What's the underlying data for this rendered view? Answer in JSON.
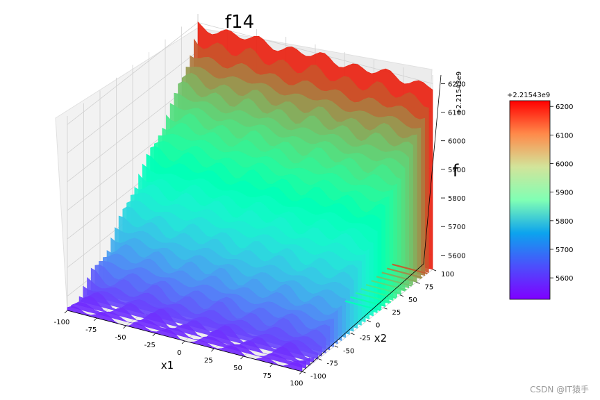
{
  "chart_data": {
    "type": "surface",
    "title": "f14",
    "xlabel": "x1",
    "ylabel": "x2",
    "zlabel": "f",
    "xlim": [
      -100,
      100
    ],
    "ylim": [
      -100,
      100
    ],
    "zlim": [
      5550,
      6230
    ],
    "x_ticks": [
      "-100",
      "-75",
      "-50",
      "-25",
      "0",
      "25",
      "50",
      "75",
      "100"
    ],
    "y_ticks": [
      "-100",
      "-75",
      "-50",
      "-25",
      "0",
      "25",
      "50",
      "75",
      "100"
    ],
    "z_ticks": [
      "5600",
      "5700",
      "5800",
      "5900",
      "6000",
      "6100",
      "6200"
    ],
    "z_offset_label": "+2.21543e9",
    "colormap": "rainbow",
    "colorbar": {
      "offset_label": "+2.21543e9",
      "ticks": [
        "5600",
        "5700",
        "5800",
        "5900",
        "6000",
        "6100",
        "6200"
      ],
      "range": [
        5525,
        6220
      ]
    },
    "grid": true,
    "surface_profile": {
      "x2": [
        -100,
        -90,
        -80,
        -70,
        -60,
        -50,
        -40,
        -30,
        -20,
        -10,
        0,
        10,
        20,
        30,
        40,
        50,
        60,
        70,
        80,
        90,
        100
      ],
      "f_mean": [
        5560,
        5566,
        5578,
        5595,
        5617,
        5643,
        5670,
        5700,
        5730,
        5763,
        5795,
        5828,
        5862,
        5895,
        5928,
        5960,
        5995,
        6030,
        6070,
        6120,
        6190
      ]
    }
  },
  "watermark": "CSDN @IT猿手"
}
